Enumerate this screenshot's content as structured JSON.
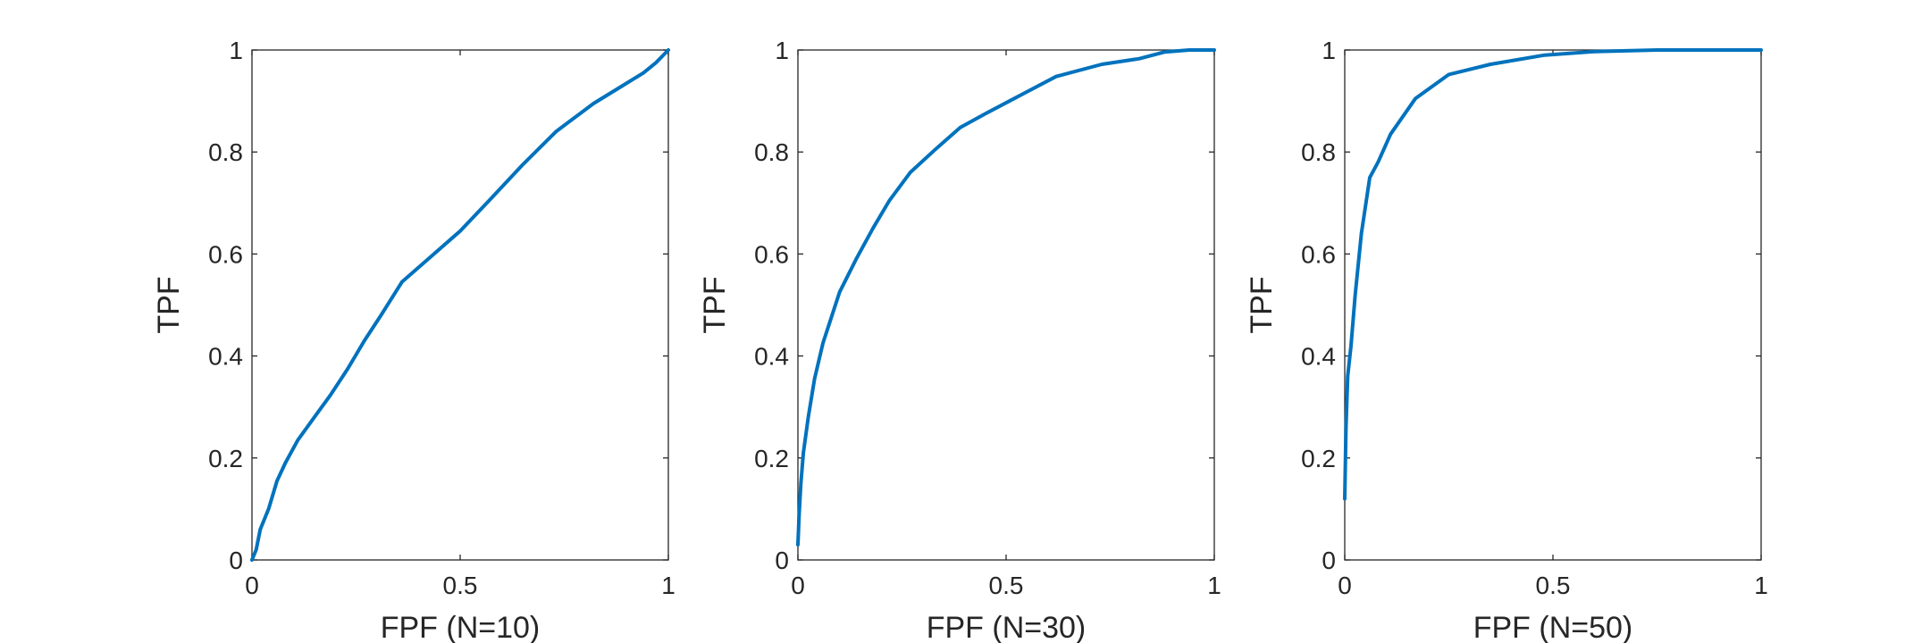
{
  "chart_data": [
    {
      "type": "line",
      "xlabel": "FPF (N=10)",
      "ylabel": "TPF",
      "xlim": [
        0,
        1
      ],
      "ylim": [
        0,
        1
      ],
      "xticks": [
        "0",
        "0.5",
        "1"
      ],
      "yticks": [
        "0",
        "0.2",
        "0.4",
        "0.6",
        "0.8",
        "1"
      ],
      "grid": false,
      "series": [
        {
          "color": "#0072bd",
          "x": [
            0,
            0.01,
            0.02,
            0.04,
            0.06,
            0.08,
            0.11,
            0.15,
            0.19,
            0.23,
            0.27,
            0.31,
            0.36,
            0.43,
            0.5,
            0.57,
            0.65,
            0.73,
            0.82,
            0.89,
            0.94,
            0.97,
            1.0
          ],
          "y": [
            0,
            0.02,
            0.06,
            0.1,
            0.155,
            0.19,
            0.235,
            0.28,
            0.325,
            0.375,
            0.43,
            0.48,
            0.545,
            0.595,
            0.645,
            0.705,
            0.775,
            0.84,
            0.895,
            0.93,
            0.955,
            0.975,
            1.0
          ]
        }
      ]
    },
    {
      "type": "line",
      "xlabel": "FPF (N=30)",
      "ylabel": "TPF",
      "xlim": [
        0,
        1
      ],
      "ylim": [
        0,
        1
      ],
      "xticks": [
        "0",
        "0.5",
        "1"
      ],
      "yticks": [
        "0",
        "0.2",
        "0.4",
        "0.6",
        "0.8",
        "1"
      ],
      "grid": false,
      "series": [
        {
          "color": "#0072bd",
          "x": [
            0,
            0.003,
            0.007,
            0.013,
            0.025,
            0.04,
            0.06,
            0.1,
            0.14,
            0.18,
            0.22,
            0.27,
            0.33,
            0.39,
            0.45,
            0.52,
            0.62,
            0.73,
            0.82,
            0.88,
            0.94,
            1.0
          ],
          "y": [
            0.03,
            0.09,
            0.15,
            0.21,
            0.28,
            0.355,
            0.425,
            0.525,
            0.59,
            0.65,
            0.705,
            0.76,
            0.805,
            0.848,
            0.875,
            0.905,
            0.948,
            0.972,
            0.983,
            0.996,
            1.0,
            1.0
          ]
        }
      ]
    },
    {
      "type": "line",
      "xlabel": "FPF (N=50)",
      "ylabel": "TPF",
      "xlim": [
        0,
        1
      ],
      "ylim": [
        0,
        1
      ],
      "xticks": [
        "0",
        "0.5",
        "1"
      ],
      "yticks": [
        "0",
        "0.2",
        "0.4",
        "0.6",
        "0.8",
        "1"
      ],
      "grid": false,
      "series": [
        {
          "color": "#0072bd",
          "x": [
            0,
            0.003,
            0.007,
            0.015,
            0.025,
            0.04,
            0.06,
            0.08,
            0.11,
            0.17,
            0.25,
            0.35,
            0.48,
            0.6,
            0.75,
            0.9,
            1.0
          ],
          "y": [
            0.12,
            0.26,
            0.36,
            0.42,
            0.52,
            0.64,
            0.75,
            0.78,
            0.835,
            0.905,
            0.952,
            0.972,
            0.99,
            0.997,
            1.0,
            1.0,
            1.0
          ]
        }
      ]
    }
  ]
}
